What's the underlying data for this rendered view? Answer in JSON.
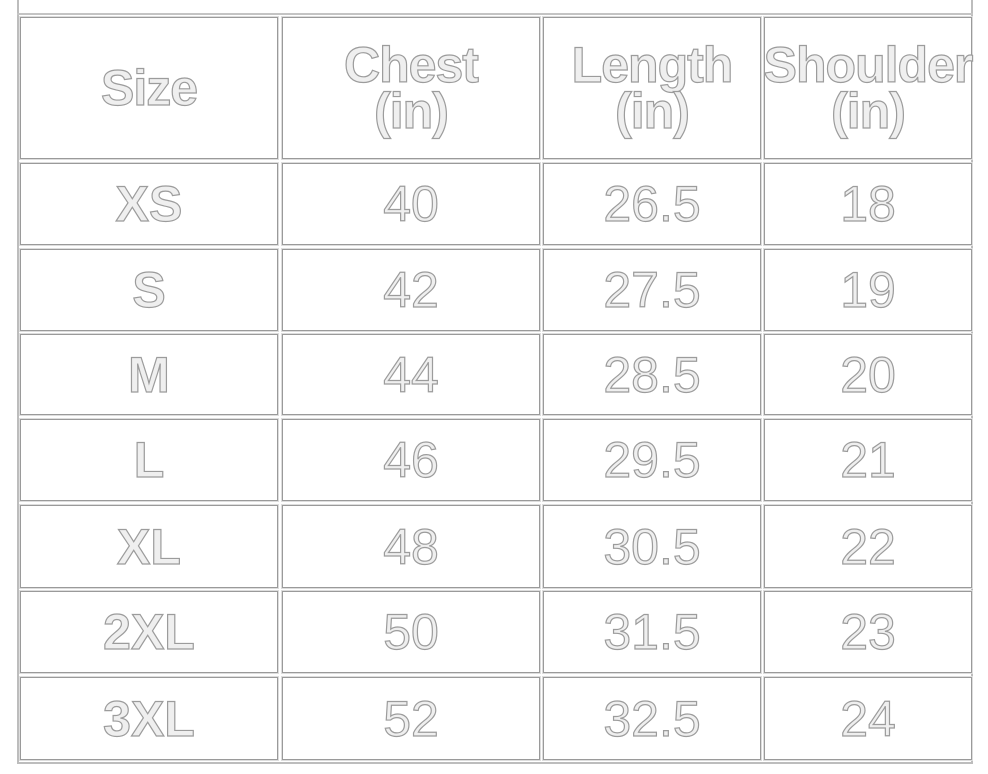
{
  "table": {
    "headers": [
      "Size",
      "Chest\n(in)",
      "Length\n(in)",
      "Shoulder\n(in)"
    ],
    "rows": [
      [
        "XS",
        "40",
        "26.5",
        "18"
      ],
      [
        "S",
        "42",
        "27.5",
        "19"
      ],
      [
        "M",
        "44",
        "28.5",
        "20"
      ],
      [
        "L",
        "46",
        "29.5",
        "21"
      ],
      [
        "XL",
        "48",
        "30.5",
        "22"
      ],
      [
        "2XL",
        "50",
        "31.5",
        "23"
      ],
      [
        "3XL",
        "52",
        "32.5",
        "24"
      ]
    ]
  },
  "colors": {
    "text_fill": "#efefef",
    "text_outline": "#9c9c9c",
    "border": "#9a9a9a"
  }
}
